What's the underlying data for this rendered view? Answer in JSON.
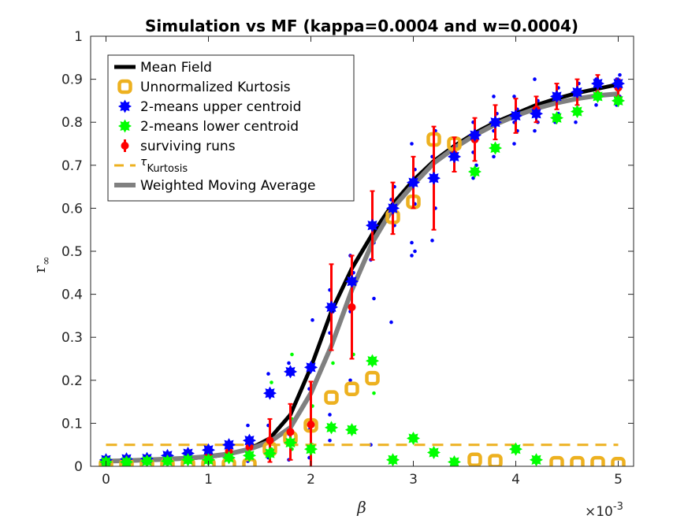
{
  "chart_data": {
    "type": "scatter",
    "title": "Simulation vs MF (kappa=0.0004 and w=0.0004)",
    "xlabel": "β",
    "ylabel_main": "r",
    "ylabel_sub": "∞",
    "x_exponent_base": "×10",
    "x_exponent_power": "-3",
    "xlim": [
      -0.15,
      5.15
    ],
    "ylim": [
      0,
      1
    ],
    "xticks": [
      0,
      1,
      2,
      3,
      4,
      5
    ],
    "xtick_labels": [
      "0",
      "1",
      "2",
      "3",
      "4",
      "5"
    ],
    "yticks": [
      0,
      0.1,
      0.2,
      0.3,
      0.4,
      0.5,
      0.6,
      0.7,
      0.8,
      0.9,
      1
    ],
    "ytick_labels": [
      "0",
      "0.1",
      "0.2",
      "0.3",
      "0.4",
      "0.5",
      "0.6",
      "0.7",
      "0.8",
      "0.9",
      "1"
    ],
    "grid": false,
    "legend_position": "top-left",
    "legend": [
      {
        "label": "Mean Field",
        "kind": "line",
        "color": "#000000"
      },
      {
        "label": "Unnormalized Kurtosis",
        "kind": "ring",
        "color": "#EDB120"
      },
      {
        "label": "2-means upper centroid",
        "kind": "star",
        "color": "#0000FF"
      },
      {
        "label": "2-means lower centroid",
        "kind": "star",
        "color": "#00FF00"
      },
      {
        "label": "surviving runs",
        "kind": "errorbar",
        "color": "#FF0000"
      },
      {
        "label": "τ",
        "sub": "Kurtosis",
        "kind": "dash",
        "color": "#EDB120"
      },
      {
        "label": "Weighted Moving Average",
        "kind": "line",
        "color": "#808080"
      }
    ],
    "x": [
      0,
      0.2,
      0.4,
      0.6,
      0.8,
      1.0,
      1.2,
      1.4,
      1.6,
      1.8,
      2.0,
      2.2,
      2.4,
      2.6,
      2.8,
      3.0,
      3.2,
      3.4,
      3.6,
      3.8,
      4.0,
      4.2,
      4.4,
      4.6,
      4.8,
      5.0
    ],
    "series": [
      {
        "name": "Mean Field",
        "type": "line",
        "color": "#000000",
        "y": [
          0.012,
          0.013,
          0.014,
          0.016,
          0.018,
          0.022,
          0.028,
          0.04,
          0.065,
          0.12,
          0.23,
          0.36,
          0.46,
          0.54,
          0.61,
          0.665,
          0.71,
          0.745,
          0.775,
          0.8,
          0.82,
          0.84,
          0.855,
          0.868,
          0.878,
          0.888
        ]
      },
      {
        "name": "Weighted Moving Average",
        "type": "line",
        "color": "#808080",
        "y": [
          0.012,
          0.013,
          0.015,
          0.017,
          0.019,
          0.023,
          0.029,
          0.04,
          0.057,
          0.09,
          0.17,
          0.28,
          0.41,
          0.52,
          0.6,
          0.655,
          0.705,
          0.74,
          0.77,
          0.795,
          0.815,
          0.832,
          0.845,
          0.855,
          0.862,
          0.866
        ]
      },
      {
        "name": "Unnormalized Kurtosis",
        "type": "ring",
        "color": "#EDB120",
        "y": [
          0.002,
          0.002,
          0.002,
          0.002,
          0.003,
          0.003,
          0.003,
          0.003,
          0.04,
          0.065,
          0.095,
          0.16,
          0.18,
          0.205,
          0.58,
          0.615,
          0.76,
          0.75,
          0.015,
          0.012,
          null,
          null,
          0.007,
          0.007,
          0.007,
          0.005
        ]
      },
      {
        "name": "2-means upper centroid",
        "type": "star",
        "color": "#0000FF",
        "y": [
          0.015,
          0.017,
          0.018,
          0.025,
          0.03,
          0.038,
          0.05,
          0.06,
          0.17,
          0.22,
          0.23,
          0.37,
          0.43,
          0.56,
          0.6,
          0.66,
          0.67,
          0.72,
          0.77,
          0.8,
          0.815,
          0.82,
          0.86,
          0.87,
          0.89,
          0.89
        ]
      },
      {
        "name": "2-means lower centroid",
        "type": "star",
        "color": "#00FF00",
        "y": [
          0.01,
          0.01,
          0.012,
          0.012,
          0.015,
          0.015,
          0.02,
          0.025,
          0.03,
          0.055,
          0.04,
          0.09,
          0.085,
          0.245,
          0.015,
          0.065,
          0.032,
          0.01,
          0.685,
          0.74,
          0.04,
          0.015,
          0.81,
          0.825,
          0.86,
          0.85
        ]
      },
      {
        "name": "surviving runs",
        "type": "errorbar",
        "color": "#FF0000",
        "y": [
          0.012,
          0.013,
          0.015,
          0.017,
          0.02,
          0.025,
          0.035,
          0.045,
          0.06,
          0.08,
          0.097,
          0.37,
          0.37,
          0.56,
          0.6,
          0.66,
          0.67,
          0.725,
          0.76,
          0.8,
          0.815,
          0.83,
          0.86,
          0.87,
          0.89,
          0.88
        ],
        "err": [
          0.005,
          0.005,
          0.006,
          0.006,
          0.008,
          0.01,
          0.015,
          0.02,
          0.05,
          0.065,
          0.1,
          0.1,
          0.12,
          0.08,
          0.06,
          0.06,
          0.12,
          0.04,
          0.05,
          0.04,
          0.04,
          0.03,
          0.03,
          0.03,
          0.02,
          0.02
        ]
      },
      {
        "name": "τKurtosis",
        "type": "hline",
        "color": "#EDB120",
        "y": 0.05
      }
    ],
    "scatter_dots": [
      {
        "x": 1.4,
        "y": [
          0.012,
          0.03,
          0.05,
          0.065,
          0.095
        ]
      },
      {
        "x": 1.6,
        "y": [
          0.02,
          0.04,
          0.095,
          0.195,
          0.215
        ]
      },
      {
        "x": 1.8,
        "y": [
          0.015,
          0.04,
          0.075,
          0.11,
          0.24,
          0.26
        ]
      },
      {
        "x": 2.0,
        "y": [
          0.02,
          0.05,
          0.085,
          0.14,
          0.18,
          0.34
        ]
      },
      {
        "x": 2.2,
        "y": [
          0.06,
          0.09,
          0.12,
          0.24,
          0.31,
          0.36,
          0.41
        ]
      },
      {
        "x": 2.4,
        "y": [
          0.2,
          0.26,
          0.36,
          0.45,
          0.49
        ]
      },
      {
        "x": 2.6,
        "y": [
          0.05,
          0.17,
          0.25,
          0.39,
          0.48,
          0.52,
          0.56
        ]
      },
      {
        "x": 2.8,
        "y": [
          0.335,
          0.56,
          0.62,
          0.65
        ]
      },
      {
        "x": 3.0,
        "y": [
          0.49,
          0.5,
          0.52,
          0.61,
          0.66,
          0.69,
          0.75
        ]
      },
      {
        "x": 3.2,
        "y": [
          0.525,
          0.6,
          0.72,
          0.78
        ]
      },
      {
        "x": 3.6,
        "y": [
          0.67,
          0.7,
          0.73,
          0.76,
          0.8
        ]
      },
      {
        "x": 3.8,
        "y": [
          0.72,
          0.74,
          0.78,
          0.82,
          0.86
        ]
      },
      {
        "x": 4.0,
        "y": [
          0.75,
          0.78,
          0.8,
          0.83,
          0.86
        ]
      },
      {
        "x": 4.2,
        "y": [
          0.78,
          0.8,
          0.83,
          0.85,
          0.9
        ]
      },
      {
        "x": 4.4,
        "y": [
          0.8,
          0.82,
          0.85,
          0.88
        ]
      },
      {
        "x": 4.6,
        "y": [
          0.8,
          0.82,
          0.86,
          0.89
        ]
      },
      {
        "x": 4.8,
        "y": [
          0.84,
          0.86,
          0.9
        ]
      },
      {
        "x": 5.0,
        "y": [
          0.84,
          0.86,
          0.9,
          0.91
        ]
      }
    ],
    "dot_colors": [
      "#0000FF",
      "#00FF00"
    ]
  }
}
